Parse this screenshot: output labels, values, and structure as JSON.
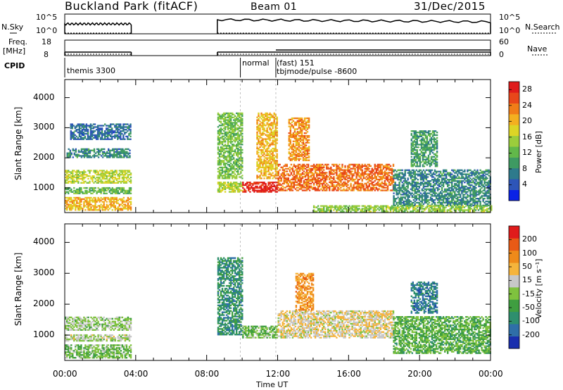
{
  "header": {
    "title": "Buckland Park (fitACF)",
    "beam": "Beam 01",
    "date": "31/Dec/2015"
  },
  "status_panels": {
    "nsky_label": "N.Sky",
    "nsky_ticks": [
      "10^5",
      "10^0"
    ],
    "nsearch_label": "N.Search",
    "nsearch_ticks": [
      "10^5",
      "10^0"
    ],
    "freq_label": "Freq.",
    "freq_unit": "[MHz]",
    "freq_ticks": [
      "18",
      "8"
    ],
    "nave_label": "Nave",
    "nave_ticks": [
      "60",
      "0"
    ],
    "cpid_label": "CPID",
    "cpid_entries": [
      {
        "text": "themis 3300",
        "start_h": 0.0
      },
      {
        "text": "normal",
        "start_h": 9.9
      },
      {
        "text": "(fast)  151",
        "start_h": 11.9
      },
      {
        "text": "tbjmode/pulse  -8600",
        "start_h": 11.9
      }
    ]
  },
  "chart_data": [
    {
      "type": "heatmap",
      "title": "",
      "xlabel": "Time UT",
      "ylabel": "Slant Range [km]",
      "xlim": [
        0,
        24
      ],
      "ylim": [
        180,
        4600
      ],
      "x_ticks": [
        "00:00",
        "04:00",
        "08:00",
        "12:00",
        "16:00",
        "20:00",
        "00:00"
      ],
      "y_ticks": [
        "1000",
        "2000",
        "3000",
        "4000"
      ],
      "colorbar": {
        "label": "Power [dB]",
        "ticks": [
          "4",
          "8",
          "12",
          "16",
          "20",
          "24",
          "28"
        ],
        "range": [
          0,
          30
        ],
        "colors": [
          "#0b22e6",
          "#2d55b8",
          "#2e7a8c",
          "#3e9a62",
          "#62b84a",
          "#9bcd3c",
          "#dcd526",
          "#f3b020",
          "#f07d18",
          "#e8471a",
          "#e01b1b"
        ]
      },
      "gaps_h": [
        [
          3.75,
          8.6
        ]
      ],
      "regions": [
        {
          "t": [
            0.0,
            3.75
          ],
          "r": [
            250,
            700
          ],
          "v": 20
        },
        {
          "t": [
            0.0,
            3.75
          ],
          "r": [
            800,
            1000
          ],
          "v": 12
        },
        {
          "t": [
            0.0,
            3.75
          ],
          "r": [
            1150,
            1600
          ],
          "v": 16
        },
        {
          "t": [
            0.1,
            3.7
          ],
          "r": [
            2000,
            2300
          ],
          "v": 8
        },
        {
          "t": [
            0.3,
            3.7
          ],
          "r": [
            2600,
            3100
          ],
          "v": 6
        },
        {
          "t": [
            8.6,
            10.0
          ],
          "r": [
            850,
            1200
          ],
          "v": 16
        },
        {
          "t": [
            8.6,
            10.0
          ],
          "r": [
            1300,
            3500
          ],
          "v": 13
        },
        {
          "t": [
            10.0,
            12.0
          ],
          "r": [
            850,
            1200
          ],
          "v": 28
        },
        {
          "t": [
            10.8,
            12.0
          ],
          "r": [
            1300,
            3500
          ],
          "v": 20
        },
        {
          "t": [
            12.0,
            18.5
          ],
          "r": [
            900,
            1800
          ],
          "v": 24
        },
        {
          "t": [
            12.6,
            13.8
          ],
          "r": [
            1900,
            3300
          ],
          "v": 22
        },
        {
          "t": [
            18.5,
            24.0
          ],
          "r": [
            400,
            1600
          ],
          "v": 8
        },
        {
          "t": [
            19.5,
            21.0
          ],
          "r": [
            1700,
            2900
          ],
          "v": 10
        },
        {
          "t": [
            14.0,
            24.0
          ],
          "r": [
            200,
            400
          ],
          "v": 14
        }
      ]
    },
    {
      "type": "heatmap",
      "title": "",
      "xlabel": "Time UT",
      "ylabel": "Slant Range [km]",
      "xlim": [
        0,
        24
      ],
      "ylim": [
        180,
        4600
      ],
      "x_ticks": [
        "00:00",
        "04:00",
        "08:00",
        "12:00",
        "16:00",
        "20:00",
        "00:00"
      ],
      "y_ticks": [
        "1000",
        "2000",
        "3000",
        "4000"
      ],
      "colorbar": {
        "label": "Velocity [m s⁻¹]",
        "ticks": [
          "200",
          "100",
          "50",
          "15",
          "-15",
          "-50",
          "-100",
          "-200"
        ],
        "range": [
          -250,
          250
        ],
        "colors": [
          "#1a2fae",
          "#2f6fa8",
          "#2e8f6e",
          "#3f9e40",
          "#7fc23e",
          "#c8c8c8",
          "#f5b43c",
          "#ef8a1a",
          "#e85a16",
          "#e01b1b"
        ]
      },
      "gaps_h": [
        [
          3.75,
          8.6
        ]
      ],
      "regions": [
        {
          "t": [
            0.0,
            3.75
          ],
          "r": [
            250,
            700
          ],
          "v": -40
        },
        {
          "t": [
            0.0,
            3.75
          ],
          "r": [
            800,
            1000
          ],
          "v": 0
        },
        {
          "t": [
            0.0,
            3.75
          ],
          "r": [
            1150,
            1600
          ],
          "v": -10
        },
        {
          "t": [
            8.6,
            10.0
          ],
          "r": [
            1000,
            3500
          ],
          "v": -120
        },
        {
          "t": [
            10.0,
            12.0
          ],
          "r": [
            900,
            1300
          ],
          "v": -40
        },
        {
          "t": [
            12.0,
            18.5
          ],
          "r": [
            900,
            1800
          ],
          "v": 40
        },
        {
          "t": [
            13.0,
            14.0
          ],
          "r": [
            1800,
            3000
          ],
          "v": 110
        },
        {
          "t": [
            18.5,
            24.0
          ],
          "r": [
            400,
            1600
          ],
          "v": -60
        },
        {
          "t": [
            19.5,
            21.0
          ],
          "r": [
            1700,
            2700
          ],
          "v": -150
        }
      ]
    }
  ]
}
